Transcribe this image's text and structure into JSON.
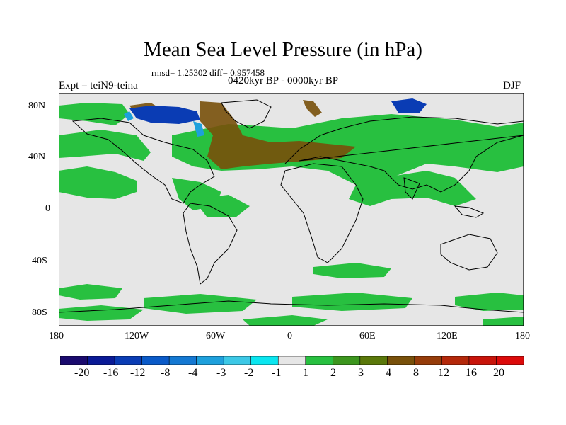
{
  "title": "Mean Sea Level Pressure (in hPa)",
  "stats_line": "rmsd= 1.25302 diff= 0.957458",
  "expt_label": "Expt = teiN9-teina",
  "period_label": "0420kyr BP - 0000kyr BP",
  "season_label": "DJF",
  "lat_ticks": [
    "80N",
    "40N",
    "0",
    "40S",
    "80S"
  ],
  "lon_ticks": [
    "180",
    "120W",
    "60W",
    "0",
    "60E",
    "120E",
    "180"
  ],
  "colorbar": {
    "labels": [
      "-20",
      "-16",
      "-12",
      "-8",
      "-4",
      "-3",
      "-2",
      "-1",
      "1",
      "2",
      "3",
      "4",
      "8",
      "12",
      "16",
      "20"
    ],
    "colors": [
      "#1a0a6e",
      "#0a1a96",
      "#0a3cb4",
      "#0a5ac8",
      "#1478d2",
      "#1ea0dc",
      "#3cc8e6",
      "#0ae6f0",
      "#e6e6e6",
      "#28c040",
      "#3c961e",
      "#5a780a",
      "#78500a",
      "#963c0a",
      "#b4280a",
      "#c8140a",
      "#dc0a0a"
    ]
  },
  "field_colors": {
    "background": "#e6e6e6",
    "positive_small": "#28c040",
    "positive_med": "#5a780a",
    "positive_large": "#78500a",
    "negative_small": "#1ea0dc",
    "negative_large": "#0a3cb4"
  }
}
